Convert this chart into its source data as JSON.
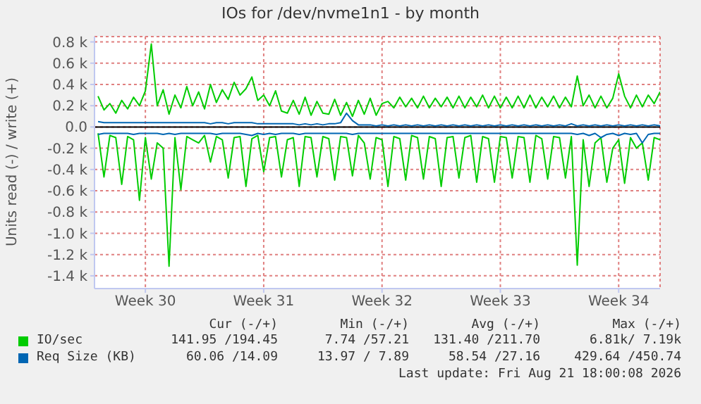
{
  "chart_data": {
    "type": "line",
    "title": "IOs for /dev/nvme1n1 - by month",
    "ylabel": "Units read (-) / write (+)",
    "categories": [
      null,
      null,
      null,
      null,
      null,
      null,
      null,
      null,
      "Week 30",
      null,
      null,
      null,
      null,
      null,
      null,
      null,
      null,
      null,
      null,
      null,
      null,
      null,
      null,
      null,
      null,
      null,
      null,
      null,
      "Week 31",
      null,
      null,
      null,
      null,
      null,
      null,
      null,
      null,
      null,
      null,
      null,
      null,
      null,
      null,
      null,
      null,
      null,
      null,
      null,
      "Week 32",
      null,
      null,
      null,
      null,
      null,
      null,
      null,
      null,
      null,
      null,
      null,
      null,
      null,
      null,
      null,
      null,
      null,
      null,
      null,
      "Week 33",
      null,
      null,
      null,
      null,
      null,
      null,
      null,
      null,
      null,
      null,
      null,
      null,
      null,
      null,
      null,
      null,
      null,
      null,
      null,
      "Week 34",
      null,
      null,
      null,
      null,
      null,
      null,
      null
    ],
    "ylim": [
      -1520,
      850
    ],
    "yticks": [
      {
        "value": -1400,
        "label": "-1.4 k"
      },
      {
        "value": -1200,
        "label": "-1.2 k"
      },
      {
        "value": -1000,
        "label": "-1.0 k"
      },
      {
        "value": -800,
        "label": "-0.8 k"
      },
      {
        "value": -600,
        "label": "-0.6 k"
      },
      {
        "value": -400,
        "label": "-0.4 k"
      },
      {
        "value": -200,
        "label": "-0.2 k"
      },
      {
        "value": 0,
        "label": "0.0"
      },
      {
        "value": 200,
        "label": "0.2 k"
      },
      {
        "value": 400,
        "label": "0.4 k"
      },
      {
        "value": 600,
        "label": "0.6 k"
      },
      {
        "value": 800,
        "label": "0.8 k"
      }
    ],
    "grid": true,
    "legend": "bottom",
    "line_style": "solid",
    "marker": "none",
    "ref_lines": [
      {
        "axis": "y",
        "value": 0,
        "color": "#000000"
      }
    ],
    "series": [
      {
        "name": "IO/sec",
        "color": "#00cc00",
        "values": [
          290,
          160,
          220,
          130,
          250,
          170,
          280,
          200,
          340,
          780,
          200,
          350,
          120,
          300,
          180,
          380,
          200,
          330,
          170,
          400,
          230,
          350,
          260,
          420,
          300,
          360,
          470,
          250,
          300,
          200,
          340,
          150,
          130,
          250,
          120,
          280,
          110,
          240,
          130,
          120,
          260,
          110,
          230,
          100,
          250,
          120,
          270,
          110,
          220,
          240,
          180,
          280,
          190,
          270,
          180,
          290,
          180,
          270,
          190,
          280,
          180,
          290,
          180,
          280,
          190,
          300,
          180,
          290,
          180,
          280,
          180,
          290,
          180,
          300,
          180,
          280,
          190,
          290,
          180,
          280,
          190,
          480,
          200,
          300,
          180,
          290,
          180,
          270,
          500,
          290,
          180,
          300,
          190,
          300,
          220,
          330
        ]
      },
      {
        "color": "#00cc00",
        "values": [
          -60,
          -470,
          -80,
          -100,
          -540,
          -90,
          -120,
          -690,
          -100,
          -490,
          -150,
          -200,
          -1310,
          -100,
          -590,
          -90,
          -120,
          -150,
          -80,
          -330,
          -90,
          -120,
          -480,
          -100,
          -90,
          -560,
          -110,
          -80,
          -420,
          -100,
          -90,
          -470,
          -120,
          -100,
          -560,
          -90,
          -100,
          -470,
          -90,
          -110,
          -500,
          -90,
          -100,
          -460,
          -80,
          -150,
          -490,
          -100,
          -120,
          -560,
          -90,
          -110,
          -500,
          -80,
          -100,
          -490,
          -90,
          -110,
          -560,
          -100,
          -90,
          -480,
          -100,
          -80,
          -520,
          -90,
          -110,
          -520,
          -90,
          -100,
          -480,
          -90,
          -100,
          -520,
          -80,
          -110,
          -490,
          -90,
          -100,
          -480,
          -90,
          -1300,
          -120,
          -560,
          -150,
          -100,
          -520,
          -200,
          -120,
          -530,
          -100,
          -200,
          -150,
          -500,
          -100,
          -120
        ]
      },
      {
        "name": "Req Size (KB)",
        "color": "#0066b3",
        "values": [
          50,
          40,
          40,
          40,
          40,
          40,
          40,
          40,
          40,
          40,
          40,
          40,
          40,
          40,
          40,
          40,
          40,
          40,
          40,
          30,
          40,
          40,
          30,
          40,
          40,
          40,
          40,
          30,
          30,
          30,
          30,
          30,
          30,
          30,
          20,
          30,
          20,
          30,
          20,
          30,
          30,
          40,
          130,
          60,
          20,
          20,
          20,
          10,
          20,
          10,
          20,
          10,
          20,
          10,
          20,
          10,
          20,
          10,
          20,
          10,
          20,
          10,
          20,
          10,
          20,
          10,
          20,
          10,
          20,
          10,
          20,
          10,
          20,
          10,
          20,
          10,
          20,
          10,
          20,
          10,
          30,
          10,
          20,
          10,
          20,
          10,
          20,
          10,
          20,
          10,
          20,
          10,
          20,
          10,
          20,
          10
        ]
      },
      {
        "color": "#0066b3",
        "values": [
          -70,
          -60,
          -60,
          -60,
          -60,
          -60,
          -70,
          -60,
          -60,
          -60,
          -60,
          -70,
          -60,
          -70,
          -60,
          -60,
          -60,
          -60,
          -60,
          -60,
          -70,
          -60,
          -60,
          -60,
          -60,
          -70,
          -80,
          -60,
          -70,
          -60,
          -70,
          -60,
          -60,
          -60,
          -70,
          -60,
          -60,
          -60,
          -60,
          -60,
          -60,
          -60,
          -60,
          -70,
          -60,
          -60,
          -60,
          -60,
          -60,
          -60,
          -60,
          -60,
          -60,
          -60,
          -60,
          -60,
          -60,
          -60,
          -60,
          -60,
          -60,
          -60,
          -60,
          -60,
          -60,
          -60,
          -60,
          -60,
          -60,
          -60,
          -60,
          -60,
          -60,
          -60,
          -60,
          -60,
          -60,
          -60,
          -60,
          -60,
          -60,
          -70,
          -60,
          -80,
          -60,
          -100,
          -70,
          -60,
          -80,
          -60,
          -70,
          -60,
          -150,
          -70,
          -60,
          -60
        ]
      }
    ],
    "annotations": [
      "Cur (-/+)",
      "Min (-/+)",
      "Avg (-/+)",
      "Max (-/+)",
      "141.95 /194.45",
      "7.74 /57.21",
      "131.40 /211.70",
      "6.81k/ 7.19k",
      "60.06 /14.09",
      "13.97 / 7.89",
      "58.54 /27.16",
      "429.64 /450.74",
      "Last update: Fri Aug 21 18:00:08 2026"
    ]
  }
}
